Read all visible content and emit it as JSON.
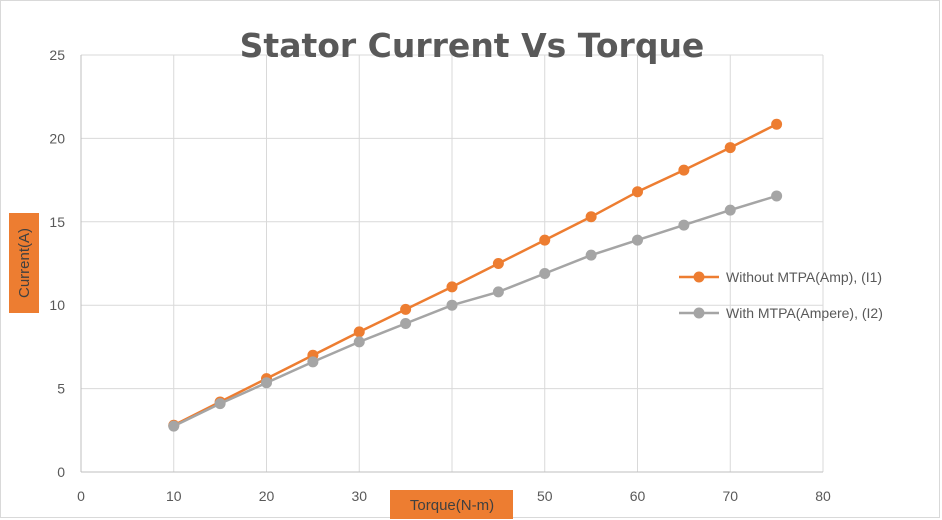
{
  "chart_data": {
    "type": "line",
    "title": "Stator Current Vs Torque",
    "xlabel": "Torque(N-m)",
    "ylabel": "Current(A)",
    "xlim": [
      0,
      80
    ],
    "ylim": [
      0,
      25
    ],
    "x_ticks": [
      0,
      10,
      20,
      30,
      40,
      50,
      60,
      70,
      80
    ],
    "y_ticks": [
      0,
      5,
      10,
      15,
      20,
      25
    ],
    "grid": true,
    "legend_position": "right",
    "axis_label_highlight": "#ED7D31",
    "x": [
      10,
      15,
      20,
      25,
      30,
      35,
      40,
      45,
      50,
      55,
      60,
      65,
      70,
      75
    ],
    "series": [
      {
        "name": "Without MTPA(Amp), (I1)",
        "color": "#ED7D31",
        "values": [
          2.8,
          4.2,
          5.6,
          7.0,
          8.4,
          9.75,
          11.1,
          12.5,
          13.9,
          15.3,
          16.8,
          18.1,
          19.45,
          20.85
        ]
      },
      {
        "name": "With MTPA(Ampere), (I2)",
        "color": "#A5A5A5",
        "values": [
          2.75,
          4.1,
          5.35,
          6.6,
          7.8,
          8.9,
          10.0,
          10.8,
          11.9,
          13.0,
          13.9,
          14.8,
          15.7,
          16.55
        ]
      }
    ]
  }
}
